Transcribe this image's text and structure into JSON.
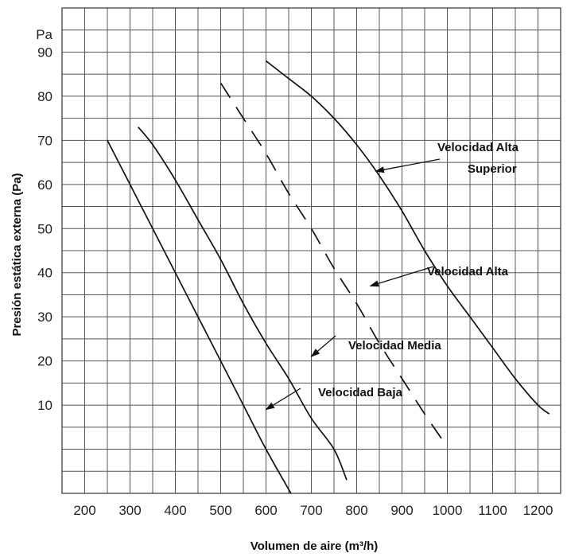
{
  "chart_data": {
    "type": "line",
    "title": "",
    "xlabel": "Volumen de aire (m³/h)",
    "ylabel": "Presión estática externa (Pa)",
    "y_unit_label": "Pa",
    "xlim": [
      150,
      1250
    ],
    "ylim": [
      -10,
      100
    ],
    "x_ticks": [
      200,
      300,
      400,
      500,
      600,
      700,
      800,
      900,
      1000,
      1100,
      1200
    ],
    "y_ticks": [
      10,
      20,
      30,
      40,
      50,
      60,
      70,
      80,
      90
    ],
    "x_tick_labels": [
      "200",
      "300",
      "400",
      "500",
      "600",
      "700",
      "800",
      "900",
      "1000",
      "1100",
      "1200"
    ],
    "y_tick_labels": [
      "10",
      "20",
      "30",
      "40",
      "50",
      "60",
      "70",
      "80",
      "90"
    ],
    "grid": true,
    "series": [
      {
        "name": "Velocidad Baja",
        "style": "solid",
        "points": [
          [
            250,
            70
          ],
          [
            300,
            60
          ],
          [
            350,
            50
          ],
          [
            400,
            40
          ],
          [
            450,
            30
          ],
          [
            500,
            20
          ],
          [
            550,
            10
          ],
          [
            600,
            0
          ],
          [
            655,
            -10
          ]
        ]
      },
      {
        "name": "Velocidad Media",
        "style": "solid",
        "points": [
          [
            318,
            73
          ],
          [
            350,
            69
          ],
          [
            400,
            61
          ],
          [
            450,
            52
          ],
          [
            500,
            43
          ],
          [
            550,
            33
          ],
          [
            600,
            24
          ],
          [
            650,
            16
          ],
          [
            700,
            7
          ],
          [
            750,
            0
          ],
          [
            778,
            -7
          ]
        ]
      },
      {
        "name": "Velocidad Alta",
        "style": "dashed",
        "points": [
          [
            500,
            83
          ],
          [
            550,
            75
          ],
          [
            600,
            67
          ],
          [
            650,
            58
          ],
          [
            700,
            50
          ],
          [
            750,
            41
          ],
          [
            800,
            33
          ],
          [
            850,
            24
          ],
          [
            900,
            16
          ],
          [
            950,
            8
          ],
          [
            990,
            2
          ]
        ]
      },
      {
        "name": "Velocidad Alta Superior",
        "style": "solid",
        "points": [
          [
            600,
            88
          ],
          [
            650,
            84
          ],
          [
            700,
            80
          ],
          [
            750,
            75
          ],
          [
            800,
            69
          ],
          [
            850,
            62
          ],
          [
            900,
            54
          ],
          [
            950,
            45
          ],
          [
            1000,
            37
          ],
          [
            1050,
            30
          ],
          [
            1100,
            23
          ],
          [
            1150,
            16
          ],
          [
            1200,
            10
          ],
          [
            1225,
            8
          ]
        ]
      }
    ],
    "annotations": [
      {
        "text": "Velocidad Alta",
        "text_line2": "Superior",
        "point_to": [
          842,
          63
        ]
      },
      {
        "text": "Velocidad Alta",
        "point_to": [
          830,
          37
        ]
      },
      {
        "text": "Velocidad Media",
        "point_to": [
          700,
          21
        ]
      },
      {
        "text": "Velocidad Baja",
        "point_to": [
          600,
          9
        ]
      }
    ]
  }
}
